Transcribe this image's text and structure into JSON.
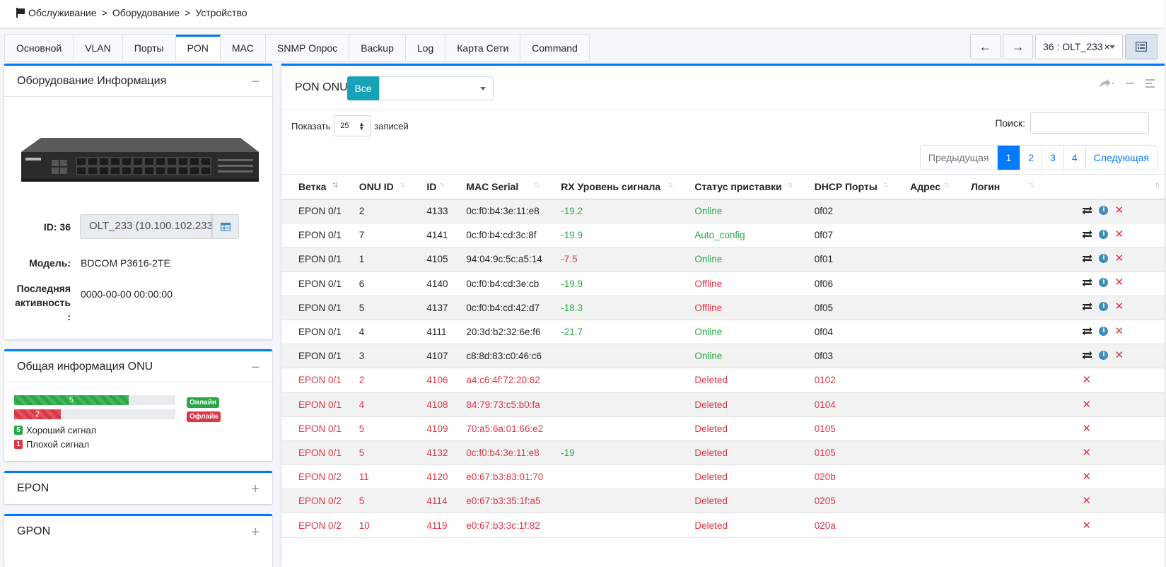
{
  "breadcrumb": {
    "items": [
      "Обслуживание",
      "Оборудование",
      "Устройство"
    ],
    "sep": ">"
  },
  "tabs": [
    {
      "label": "Основной",
      "active": false
    },
    {
      "label": "VLAN",
      "active": false
    },
    {
      "label": "Порты",
      "active": false
    },
    {
      "label": "PON",
      "active": true
    },
    {
      "label": "MAC",
      "active": false
    },
    {
      "label": "SNMP Опрос",
      "active": false
    },
    {
      "label": "Backup",
      "active": false
    },
    {
      "label": "Log",
      "active": false
    },
    {
      "label": "Карта Сети",
      "active": false
    },
    {
      "label": "Command",
      "active": false
    }
  ],
  "nav": {
    "back": "←",
    "forward": "→",
    "device_select": "36 : OLT_233",
    "clear": "×"
  },
  "info_card": {
    "title": "Оборудование Информация",
    "collapse": "−",
    "id_label": "ID: 36",
    "id_value": "OLT_233 (10.100.102.233)",
    "model_label": "Модель:",
    "model_value": "BDCOM P3616-2TE",
    "last_label": "Последняя активность :",
    "last_value": "0000-00-00 00:00:00"
  },
  "onu_card": {
    "title": "Общая информация ONU",
    "collapse": "−",
    "online_count": "5",
    "offline_count": "2",
    "online_fraction": 0.71,
    "offline_fraction": 0.29,
    "online_badge": "Онлайн",
    "offline_badge": "Офлайн",
    "good_count": "5",
    "good_label": "Хороший сигнал",
    "bad_count": "1",
    "bad_label": "Плохой сигнал"
  },
  "epon_card": {
    "title": "EPON",
    "expand": "+"
  },
  "gpon_card": {
    "title": "GPON",
    "expand": "+"
  },
  "main": {
    "title": "PON ONU",
    "all_button": "Все",
    "show_label": "Показать",
    "page_len": "25",
    "records_label": "записей",
    "search_label": "Поиск:",
    "search_value": "",
    "pager": {
      "prev": "Предыдущая",
      "pages": [
        "1",
        "2",
        "3",
        "4"
      ],
      "active": "1",
      "next": "Следующая"
    }
  },
  "table": {
    "columns": [
      "Ветка",
      "ONU ID",
      "ID",
      "MAC Serial",
      "RX Уровень сигнала",
      "Статус приставки",
      "DHCP Порты",
      "Адрес",
      "Логин",
      ""
    ],
    "rows": [
      {
        "branch": "EPON 0/1",
        "onu_id": "2",
        "id": "4133",
        "mac": "0c:f0:b4:3e:11:e8",
        "rx": "-19.2",
        "status": "Online",
        "dhcp": "0f02",
        "addr": "",
        "login": "",
        "deleted": false
      },
      {
        "branch": "EPON 0/1",
        "onu_id": "7",
        "id": "4141",
        "mac": "0c:f0:b4:cd:3c:8f",
        "rx": "-19.9",
        "status": "Auto_config",
        "dhcp": "0f07",
        "addr": "",
        "login": "",
        "deleted": false
      },
      {
        "branch": "EPON 0/1",
        "onu_id": "1",
        "id": "4105",
        "mac": "94:04:9c:5c:a5:14",
        "rx": "-7.5",
        "status": "Online",
        "dhcp": "0f01",
        "addr": "",
        "login": "",
        "deleted": false
      },
      {
        "branch": "EPON 0/1",
        "onu_id": "6",
        "id": "4140",
        "mac": "0c:f0:b4:cd:3e:cb",
        "rx": "-19.9",
        "status": "Offline",
        "dhcp": "0f06",
        "addr": "",
        "login": "",
        "deleted": false
      },
      {
        "branch": "EPON 0/1",
        "onu_id": "5",
        "id": "4137",
        "mac": "0c:f0:b4:cd:42:d7",
        "rx": "-18.3",
        "status": "Offline",
        "dhcp": "0f05",
        "addr": "",
        "login": "",
        "deleted": false
      },
      {
        "branch": "EPON 0/1",
        "onu_id": "4",
        "id": "4111",
        "mac": "20:3d:b2:32:6e:f6",
        "rx": "-21.7",
        "status": "Online",
        "dhcp": "0f04",
        "addr": "",
        "login": "",
        "deleted": false
      },
      {
        "branch": "EPON 0/1",
        "onu_id": "3",
        "id": "4107",
        "mac": "c8:8d:83:c0:46:c6",
        "rx": "",
        "status": "Online",
        "dhcp": "0f03",
        "addr": "",
        "login": "",
        "deleted": false
      },
      {
        "branch": "EPON 0/1",
        "onu_id": "2",
        "id": "4106",
        "mac": "a4:c6:4f:72:20:62",
        "rx": "",
        "status": "Deleted",
        "dhcp": "0102",
        "addr": "",
        "login": "",
        "deleted": true
      },
      {
        "branch": "EPON 0/1",
        "onu_id": "4",
        "id": "4108",
        "mac": "84:79:73:c5:b0:fa",
        "rx": "",
        "status": "Deleted",
        "dhcp": "0104",
        "addr": "",
        "login": "",
        "deleted": true
      },
      {
        "branch": "EPON 0/1",
        "onu_id": "5",
        "id": "4109",
        "mac": "70:a5:6a:01:66:e2",
        "rx": "",
        "status": "Deleted",
        "dhcp": "0105",
        "addr": "",
        "login": "",
        "deleted": true
      },
      {
        "branch": "EPON 0/1",
        "onu_id": "5",
        "id": "4132",
        "mac": "0c:f0:b4:3e:11:e8",
        "rx": "-19",
        "status": "Deleted",
        "dhcp": "0105",
        "addr": "",
        "login": "",
        "deleted": true
      },
      {
        "branch": "EPON 0/2",
        "onu_id": "11",
        "id": "4120",
        "mac": "e0:67:b3:83:01:70",
        "rx": "",
        "status": "Deleted",
        "dhcp": "020b",
        "addr": "",
        "login": "",
        "deleted": true
      },
      {
        "branch": "EPON 0/2",
        "onu_id": "5",
        "id": "4114",
        "mac": "e0:67:b3:35:1f:a5",
        "rx": "",
        "status": "Deleted",
        "dhcp": "0205",
        "addr": "",
        "login": "",
        "deleted": true
      },
      {
        "branch": "EPON 0/2",
        "onu_id": "10",
        "id": "4119",
        "mac": "e0:67:b3:3c:1f:82",
        "rx": "",
        "status": "Deleted",
        "dhcp": "020a",
        "addr": "",
        "login": "",
        "deleted": true
      }
    ]
  },
  "colors": {
    "accent": "#007bff",
    "online": "#28a745",
    "offline": "#dc3545",
    "info": "#17a2b8",
    "info_icon": "#3c8dbc"
  },
  "icons": {
    "edit": "exchange-icon",
    "info": "info-circle-icon",
    "delete": "times-icon",
    "back": "arrow-left-icon",
    "forward": "arrow-right-icon",
    "list": "list-alt-icon",
    "share": "share-icon",
    "columns": "bars-icon",
    "flag": "flag-icon"
  }
}
